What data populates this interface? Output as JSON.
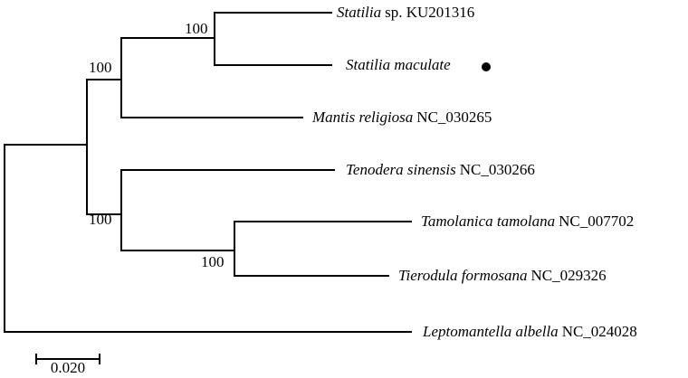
{
  "leaves": [
    {
      "italic": "Statilia",
      "plain": "sp. KU201316"
    },
    {
      "italic": "Statilia maculate",
      "plain": null
    },
    {
      "italic": "Mantis religiosa",
      "plain": "NC_030265"
    },
    {
      "italic": "Tenodera sinensis",
      "plain": "NC_030266"
    },
    {
      "italic": "Tamolanica tamolana",
      "plain": "NC_007702"
    },
    {
      "italic": "Tierodula formosana",
      "plain": "NC_029326"
    },
    {
      "italic": "Leptomantella albella",
      "plain": "NC_024028"
    }
  ],
  "bootstrap": [
    "100",
    "100",
    "100",
    "100"
  ],
  "scale_bar": {
    "label": "0.020"
  }
}
